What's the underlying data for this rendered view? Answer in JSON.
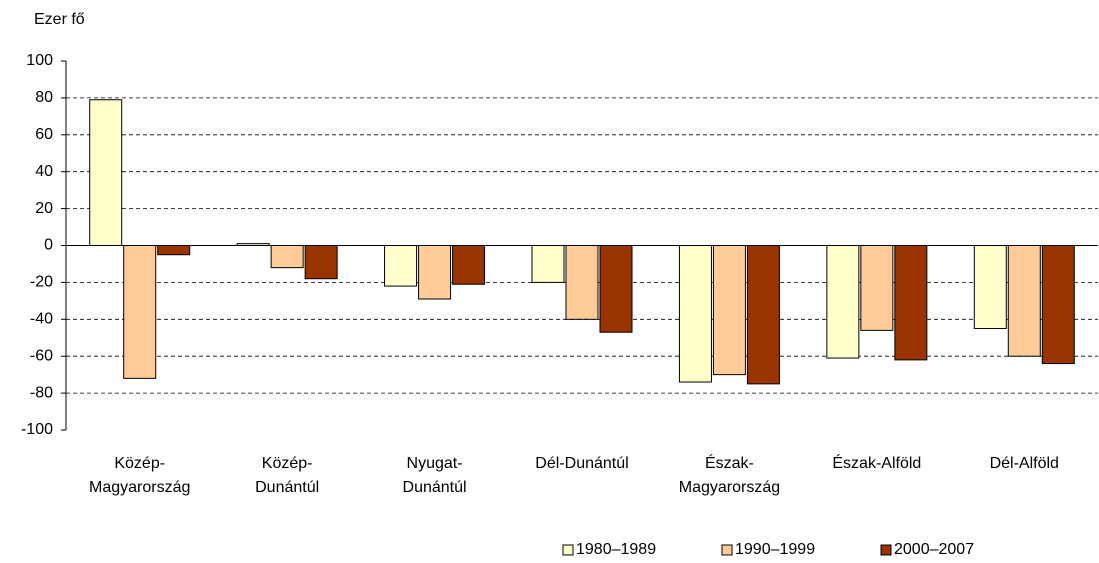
{
  "chart_data": {
    "type": "bar",
    "ylabel": "Ezer fő",
    "categories": [
      "Közép-\nMagyarország",
      "Közép-\nDunántúl",
      "Nyugat-\nDunántúl",
      "Dél-Dunántúl",
      "Észak-\nMagyarország",
      "Észak-Alföld",
      "Dél-Alföld"
    ],
    "series": [
      {
        "name": "1980–1989",
        "color": "#ffffcc",
        "values": [
          79,
          1,
          -22,
          -20,
          -74,
          -61,
          -45
        ]
      },
      {
        "name": "1990–1999",
        "color": "#ffcc99",
        "values": [
          -72,
          -12,
          -29,
          -40,
          -70,
          -46,
          -60
        ]
      },
      {
        "name": "2000–2007",
        "color": "#993300",
        "values": [
          -5,
          -18,
          -21,
          -47,
          -75,
          -62,
          -64
        ]
      }
    ],
    "ylim": [
      -100,
      100
    ],
    "yticks": [
      -100,
      -80,
      -60,
      -40,
      -20,
      0,
      20,
      40,
      60,
      80,
      100
    ],
    "grid": true,
    "legend": "bottom"
  }
}
